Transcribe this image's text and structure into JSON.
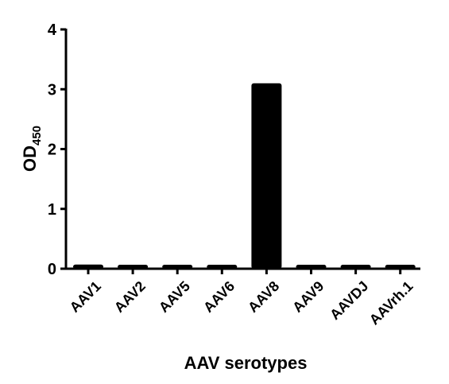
{
  "chart_data": {
    "type": "bar",
    "categories": [
      "AAV1",
      "AAV2",
      "AAV5",
      "AAV6",
      "AAV8",
      "AAV9",
      "AAVDJ",
      "AAVrh.1"
    ],
    "values": [
      0.07,
      0.06,
      0.04,
      0.05,
      3.1,
      0.05,
      0.04,
      0.05
    ],
    "xlabel": "AAV serotypes",
    "ylabel": {
      "main": "OD",
      "subscript": "450"
    },
    "ylim": [
      0,
      4
    ],
    "yticks": [
      "0",
      "1",
      "2",
      "3",
      "4"
    ],
    "grid": false,
    "legend": "none",
    "bar_color": "#000000"
  }
}
